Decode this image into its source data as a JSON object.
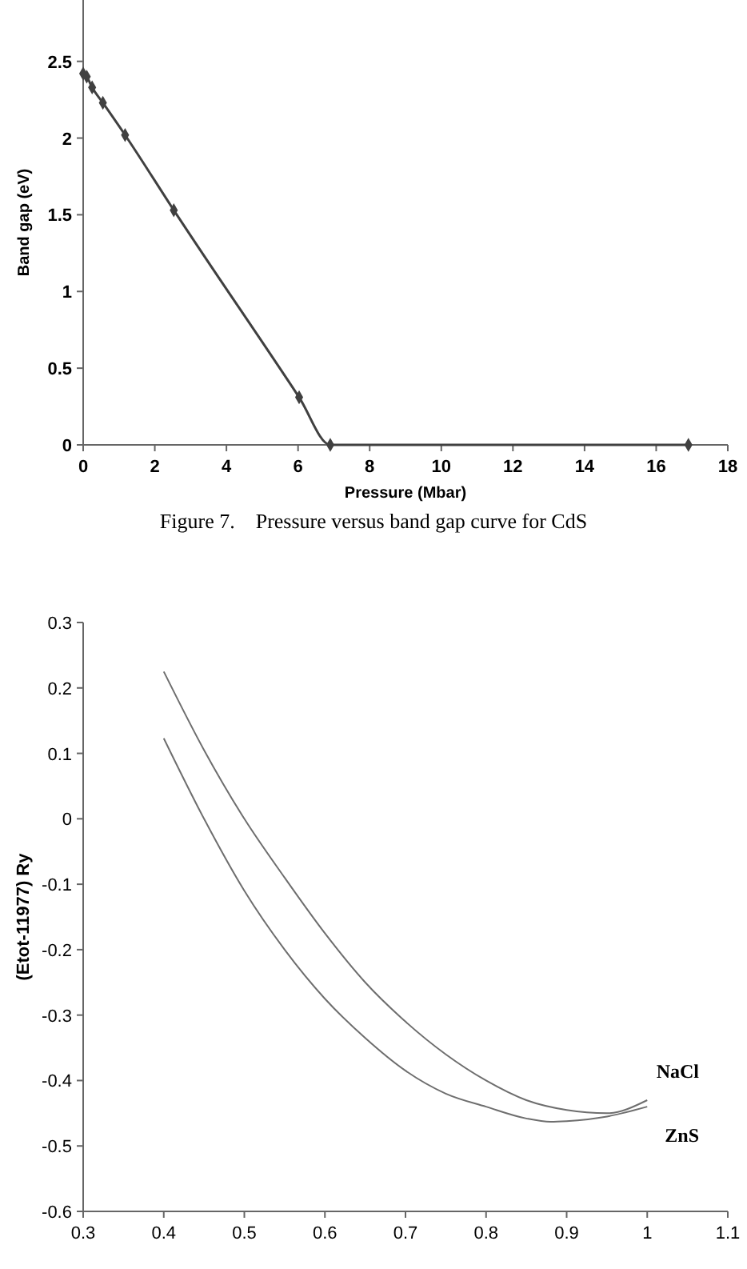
{
  "chart_data": [
    {
      "type": "line",
      "xlabel": "Pressure (Mbar)",
      "ylabel": "Band gap (eV)",
      "annotations": [
        "Figure 7.    Pressure versus band gap curve for CdS"
      ],
      "xlim": [
        0,
        18
      ],
      "ylim": [
        0,
        2.9
      ],
      "xticks": [
        0,
        2,
        4,
        6,
        8,
        10,
        12,
        14,
        16,
        18
      ],
      "yticks": [
        0,
        0.5,
        1,
        1.5,
        2,
        2.5
      ],
      "grid": false,
      "marker": "diamond",
      "line_style": "solid",
      "series": [
        {
          "color": "#404040",
          "x": [
            0,
            0.1,
            0.25,
            0.55,
            1.17,
            2.53,
            6.03,
            6.9,
            16.9
          ],
          "values": [
            2.42,
            2.4,
            2.33,
            2.23,
            2.02,
            1.53,
            0.31,
            0,
            0
          ]
        }
      ]
    },
    {
      "type": "line",
      "ylabel": "(Etot-11977) Ry",
      "xlim": [
        0.3,
        1.1
      ],
      "ylim": [
        -0.6,
        0.3
      ],
      "xticks": [
        0.3,
        0.4,
        0.5,
        0.6,
        0.7,
        0.8,
        0.9,
        1,
        {
          "value": 1.1,
          "label": "1.1"
        }
      ],
      "yticks": [
        -0.6,
        -0.5,
        -0.4,
        -0.3,
        -0.2,
        -0.1,
        0,
        0.1,
        0.2,
        0.3
      ],
      "grid": false,
      "marker": "none",
      "line_style": "solid",
      "series": [
        {
          "name": "NaCl",
          "color": "#6e6e6e",
          "x": [
            0.4,
            0.45,
            0.5,
            0.55,
            0.6,
            0.65,
            0.7,
            0.75,
            0.8,
            0.85,
            0.9,
            0.95,
            1
          ],
          "values": [
            0.225,
            0.105,
            0,
            -0.09,
            -0.175,
            -0.25,
            -0.31,
            -0.36,
            -0.4,
            -0.43,
            -0.445,
            -0.45,
            -0.43
          ]
        },
        {
          "name": "ZnS",
          "color": "#6e6e6e",
          "x": [
            0.4,
            0.45,
            0.5,
            0.55,
            0.6,
            0.65,
            0.7,
            0.75,
            0.8,
            0.85,
            0.88,
            0.9,
            0.95,
            1
          ],
          "values": [
            0.123,
            0,
            -0.11,
            -0.2,
            -0.275,
            -0.335,
            -0.385,
            -0.42,
            -0.44,
            -0.458,
            -0.463,
            -0.462,
            -0.455,
            -0.44
          ]
        }
      ]
    }
  ]
}
